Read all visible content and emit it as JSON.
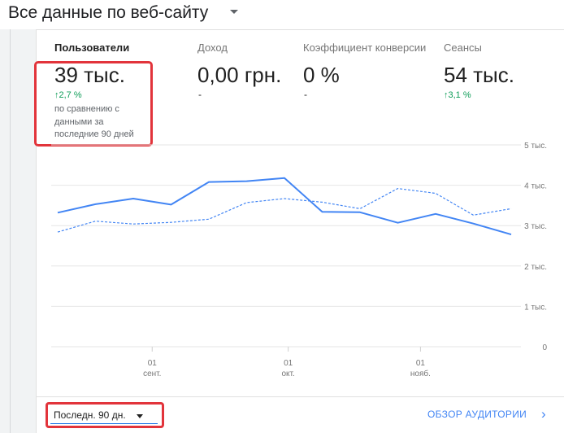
{
  "header": {
    "title": "Все данные по веб-сайту",
    "caret_icon": "caret-down-icon"
  },
  "metrics": [
    {
      "label": "Пользователи",
      "value": "39 тыс.",
      "change": "2,7 %",
      "note": "по сравнению с данными за последние 90 дней",
      "active": true
    },
    {
      "label": "Доход",
      "value": "0,00 грн.",
      "change": "-"
    },
    {
      "label": "Коэффициент конверсии",
      "value": "0 %",
      "change": "-"
    },
    {
      "label": "Сеансы",
      "value": "54 тыс.",
      "change": "3,1 %"
    }
  ],
  "change_arrow": "↑",
  "colors": {
    "accent": "#4285f4",
    "positive": "#0f9d58",
    "highlight": "#e2343b"
  },
  "chart_data": {
    "type": "line",
    "y_ticks": [
      "5 тыс.",
      "4 тыс.",
      "3 тыс.",
      "2 тыс.",
      "1 тыс.",
      "0"
    ],
    "ylim": [
      0,
      5000
    ],
    "x_ticks": [
      {
        "day": "01",
        "month": "сент.",
        "index": 2.5
      },
      {
        "day": "01",
        "month": "окт.",
        "index": 6.1
      },
      {
        "day": "01",
        "month": "нояб.",
        "index": 9.6
      }
    ],
    "series": [
      {
        "style": "solid",
        "values": [
          3320,
          3530,
          3670,
          3520,
          4080,
          4100,
          4180,
          3340,
          3330,
          3070,
          3290,
          3050,
          2780
        ]
      },
      {
        "style": "dashed",
        "values": [
          2840,
          3110,
          3040,
          3080,
          3160,
          3570,
          3670,
          3580,
          3420,
          3920,
          3800,
          3260,
          3420
        ]
      }
    ],
    "grid": true
  },
  "footer": {
    "date_range": "Последн. 90 дн.",
    "audience_link": "ОБЗОР АУДИТОРИИ",
    "chevron": "›"
  }
}
